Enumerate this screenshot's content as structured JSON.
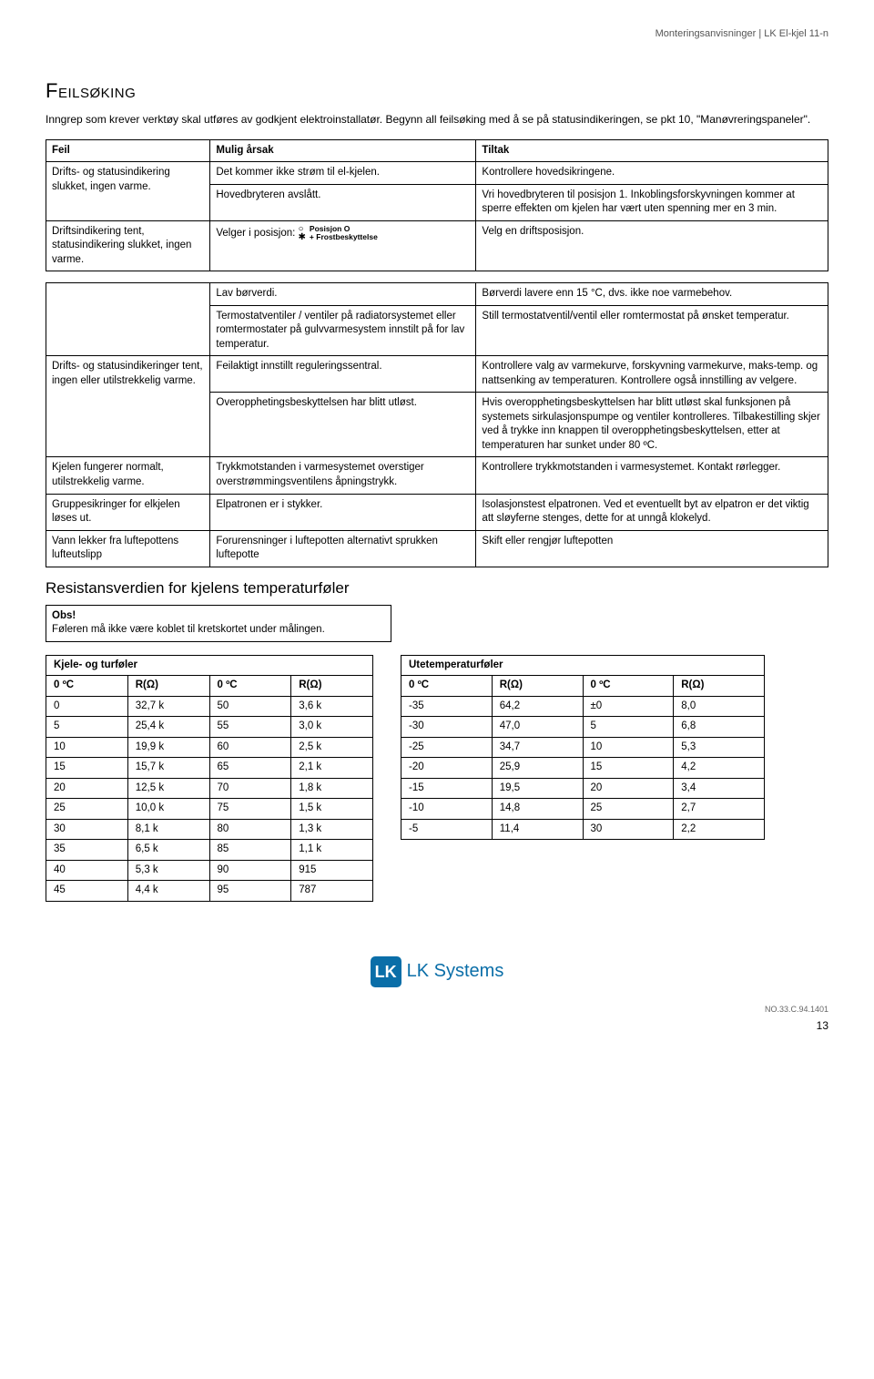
{
  "header": {
    "doc_title": "Monteringsanvisninger | LK El-kjel 11-n"
  },
  "troubleshooting": {
    "title": "Feilsøking",
    "intro": "Inngrep som krever verktøy skal utføres av godkjent elektroinstallatør. Begynn all feilsøking med å se på statusindikeringen, se pkt 10, \"Manøvreringspaneler\".",
    "headers": {
      "feil": "Feil",
      "arsak": "Mulig årsak",
      "tiltak": "Tiltak"
    },
    "rows1": [
      {
        "feil": "Drifts- og statusindikering slukket, ingen varme.",
        "parts": [
          {
            "arsak": "Det kommer ikke strøm til el-kjelen.",
            "tiltak": "Kontrollere hovedsikringene."
          },
          {
            "arsak": "Hovedbryteren avslått.",
            "tiltak": "Vri hovedbryteren til posisjon 1. Inkoblingsforskyvningen kommer at sperre effekten om kjelen har vært uten spenning mer en 3 min."
          }
        ]
      },
      {
        "feil": "Driftsindikering tent, statusindikering slukket, ingen varme.",
        "arsak_prefix": "Velger i posisjon:",
        "arsak_pos_line1": "Posisjon O",
        "arsak_pos_line2": "+ Frostbeskyttelse",
        "tiltak": "Velg en driftsposisjon."
      }
    ],
    "rows2": [
      {
        "arsak": "Lav børverdi.",
        "tiltak": "Børverdi lavere enn 15 °C, dvs. ikke noe varmebehov."
      },
      {
        "arsak": "Termostatventiler / ventiler på radiatorsystemet eller romtermostater på gulvvarmesystem innstilt på for lav temperatur.",
        "tiltak": "Still termostatventil/ventil eller romtermostat på ønsket temperatur."
      },
      {
        "feil": "Drifts- og statusindikeringer tent, ingen eller utilstrekkelig varme.",
        "arsak": "Feilaktigt innstillt reguleringssentral.",
        "tiltak": "Kontrollere valg av varmekurve, forskyvning varmekurve, maks-temp. og nattsenking av temperaturen. Kontrollere også innstilling av velgere."
      },
      {
        "arsak": "Overopphetingsbeskyttelsen har blitt utløst.",
        "tiltak": "Hvis overopphetingsbeskyttelsen har blitt utløst skal funksjonen på systemets sirkulasjonspumpe og ventiler kontrolleres. Tilbakestilling skjer ved å trykke inn knappen til overopphetingsbeskyttelsen, etter at temperaturen har sunket under 80 ºC."
      },
      {
        "feil": "Kjelen fungerer normalt, utilstrekkelig varme.",
        "arsak": "Trykkmotstanden i varmesystemet overstiger overstrømmingsventilens åpningstrykk.",
        "tiltak": "Kontrollere trykkmotstanden i varmesystemet. Kontakt rørlegger."
      },
      {
        "feil": "Gruppesikringer for elkjelen løses ut.",
        "arsak": "Elpatronen er i stykker.",
        "tiltak": "Isolasjonstest elpatronen. Ved et eventuellt byt av elpatron er det viktig att sløyferne stenges, dette for at unngå klokelyd."
      },
      {
        "feil": "Vann lekker fra luftepottens lufteutslipp",
        "arsak": "Forurensninger i luftepotten alternativt sprukken luftepotte",
        "tiltak": "Skift eller rengjør luftepotten"
      }
    ]
  },
  "resistance": {
    "title": "Resistansverdien for kjelens temperaturføler",
    "obs_label": "Obs!",
    "obs_text": "Føleren må ikke være koblet til kretskortet under målingen.",
    "left": {
      "title": "Kjele- og turføler",
      "headers": [
        "0 ºC",
        "R(Ω)",
        "0 ºC",
        "R(Ω)"
      ],
      "rows": [
        [
          "0",
          "32,7 k",
          "50",
          "3,6 k"
        ],
        [
          "5",
          "25,4 k",
          "55",
          "3,0 k"
        ],
        [
          "10",
          "19,9 k",
          "60",
          "2,5 k"
        ],
        [
          "15",
          "15,7 k",
          "65",
          "2,1 k"
        ],
        [
          "20",
          "12,5 k",
          "70",
          "1,8 k"
        ],
        [
          "25",
          "10,0 k",
          "75",
          "1,5 k"
        ],
        [
          "30",
          "8,1 k",
          "80",
          "1,3 k"
        ],
        [
          "35",
          "6,5 k",
          "85",
          "1,1 k"
        ],
        [
          "40",
          "5,3 k",
          "90",
          "915"
        ],
        [
          "45",
          "4,4 k",
          "95",
          "787"
        ]
      ]
    },
    "right": {
      "title": "Utetemperaturføler",
      "headers": [
        "0 ºC",
        "R(Ω)",
        "0 ºC",
        "R(Ω)"
      ],
      "rows": [
        [
          "-35",
          "64,2",
          "±0",
          "8,0"
        ],
        [
          "-30",
          "47,0",
          "5",
          "6,8"
        ],
        [
          "-25",
          "34,7",
          "10",
          "5,3"
        ],
        [
          "-20",
          "25,9",
          "15",
          "4,2"
        ],
        [
          "-15",
          "19,5",
          "20",
          "3,4"
        ],
        [
          "-10",
          "14,8",
          "25",
          "2,7"
        ],
        [
          "-5",
          "11,4",
          "30",
          "2,2"
        ]
      ]
    }
  },
  "footer": {
    "logo_initials": "LK",
    "logo_text": "LK Systems",
    "doc_code": "NO.33.C.94.1401",
    "page_num": "13"
  }
}
